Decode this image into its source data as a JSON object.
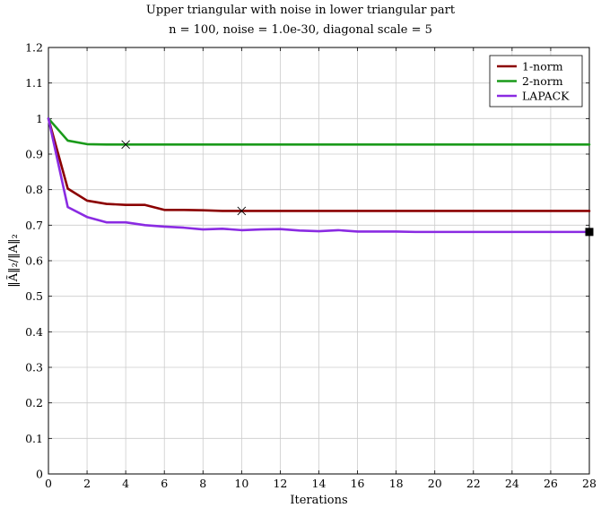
{
  "chart_data": {
    "type": "line",
    "title": "Upper triangular with noise in lower triangular part",
    "subtitle": "n = 100, noise = 1.0e-30, diagonal scale = 5",
    "xlabel": "Iterations",
    "ylabel": "‖Ã‖₂/‖A‖₂",
    "xlim": [
      0,
      28
    ],
    "ylim": [
      0,
      1.2
    ],
    "xticks": [
      0,
      2,
      4,
      6,
      8,
      10,
      12,
      14,
      16,
      18,
      20,
      22,
      24,
      26,
      28
    ],
    "yticks": [
      0,
      0.1,
      0.2,
      0.3,
      0.4,
      0.5,
      0.6,
      0.7,
      0.8,
      0.9,
      1,
      1.1,
      1.2
    ],
    "grid": true,
    "legend_position": "top-right",
    "series": [
      {
        "name": "1-norm",
        "color": "#8b0000",
        "x": [
          0,
          1,
          2,
          3,
          4,
          5,
          6,
          7,
          8,
          9,
          10,
          11,
          12,
          13,
          14,
          15,
          16,
          17,
          18,
          19,
          20,
          21,
          22,
          23,
          24,
          25,
          26,
          27,
          28
        ],
        "y": [
          1.0,
          0.803,
          0.769,
          0.76,
          0.757,
          0.757,
          0.743,
          0.743,
          0.742,
          0.74,
          0.74,
          0.74,
          0.74,
          0.74,
          0.74,
          0.74,
          0.74,
          0.74,
          0.74,
          0.74,
          0.74,
          0.74,
          0.74,
          0.74,
          0.74,
          0.74,
          0.74,
          0.74,
          0.74
        ],
        "marker": {
          "x": 10,
          "y": 0.74,
          "shape": "cross"
        }
      },
      {
        "name": "2-norm",
        "color": "#1a9a1a",
        "x": [
          0,
          1,
          2,
          3,
          4,
          5,
          6,
          7,
          8,
          9,
          10,
          11,
          12,
          13,
          14,
          15,
          16,
          17,
          18,
          19,
          20,
          21,
          22,
          23,
          24,
          25,
          26,
          27,
          28
        ],
        "y": [
          1.0,
          0.938,
          0.928,
          0.927,
          0.927,
          0.927,
          0.927,
          0.927,
          0.927,
          0.927,
          0.927,
          0.927,
          0.927,
          0.927,
          0.927,
          0.927,
          0.927,
          0.927,
          0.927,
          0.927,
          0.927,
          0.927,
          0.927,
          0.927,
          0.927,
          0.927,
          0.927,
          0.927,
          0.927
        ],
        "marker": {
          "x": 4,
          "y": 0.927,
          "shape": "cross"
        }
      },
      {
        "name": "LAPACK",
        "color": "#8a2be2",
        "x": [
          0,
          1,
          2,
          3,
          4,
          5,
          6,
          7,
          8,
          9,
          10,
          11,
          12,
          13,
          14,
          15,
          16,
          17,
          18,
          19,
          20,
          21,
          22,
          23,
          24,
          25,
          26,
          27,
          28
        ],
        "y": [
          1.0,
          0.751,
          0.723,
          0.708,
          0.708,
          0.7,
          0.696,
          0.693,
          0.688,
          0.69,
          0.686,
          0.688,
          0.689,
          0.685,
          0.683,
          0.686,
          0.682,
          0.682,
          0.682,
          0.681,
          0.681,
          0.681,
          0.681,
          0.681,
          0.681,
          0.681,
          0.681,
          0.681,
          0.681
        ],
        "marker": {
          "x": 28,
          "y": 0.681,
          "shape": "square"
        }
      }
    ]
  }
}
